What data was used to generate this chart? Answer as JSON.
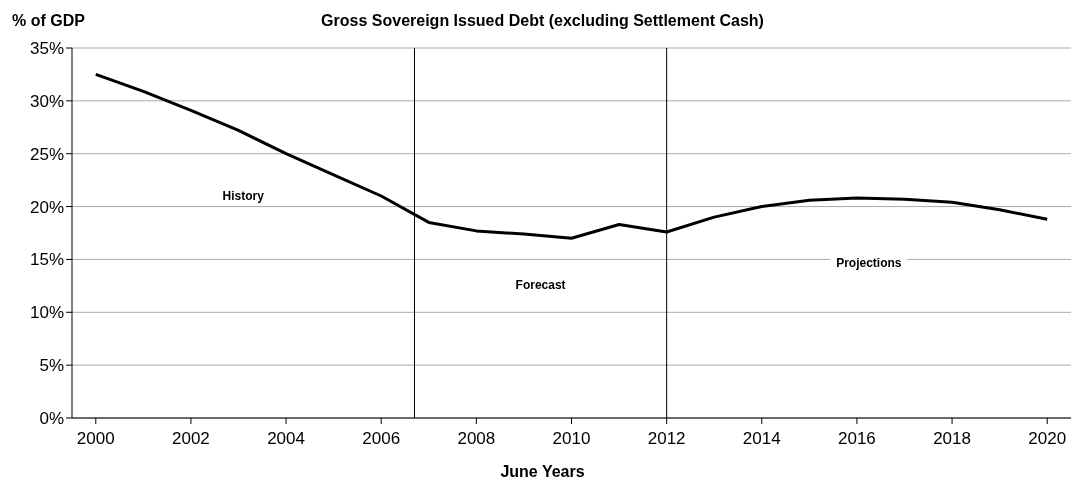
{
  "chart_data": {
    "type": "line",
    "title": "Gross Sovereign Issued Debt (excluding Settlement Cash)",
    "ylabel": "% of GDP",
    "xlabel": "June Years",
    "x": [
      2000,
      2001,
      2002,
      2003,
      2004,
      2005,
      2006,
      2007,
      2008,
      2009,
      2010,
      2011,
      2012,
      2013,
      2014,
      2015,
      2016,
      2017,
      2018,
      2019,
      2020
    ],
    "series": [
      {
        "color": "#000000",
        "values": [
          32.5,
          30.9,
          29.1,
          27.2,
          25.0,
          23.0,
          21.0,
          18.5,
          17.7,
          17.4,
          17.0,
          18.3,
          17.6,
          19.0,
          20.0,
          20.6,
          20.8,
          20.7,
          20.4,
          19.7,
          18.8
        ]
      }
    ],
    "xlim": [
      1999.5,
      2020.5
    ],
    "xticks": [
      2000,
      2002,
      2004,
      2006,
      2008,
      2010,
      2012,
      2014,
      2016,
      2018,
      2020
    ],
    "ylim": [
      0,
      35
    ],
    "yticks": [
      {
        "value": 0,
        "label": "0%"
      },
      {
        "value": 5,
        "label": "5%"
      },
      {
        "value": 10,
        "label": "10%"
      },
      {
        "value": 15,
        "label": "15%"
      },
      {
        "value": 20,
        "label": "20%"
      },
      {
        "value": 25,
        "label": "25%"
      },
      {
        "value": 30,
        "label": "30%"
      },
      {
        "value": 35,
        "label": "35%"
      }
    ],
    "ref_lines": [
      {
        "axis": "x",
        "value": 2006.7,
        "color": "#000000"
      },
      {
        "axis": "x",
        "value": 2012,
        "color": "#000000"
      }
    ],
    "annotations": [
      "History",
      "Forecast",
      "Projections"
    ],
    "grid": "y",
    "legend": false,
    "marker": "none",
    "line_style": "solid"
  }
}
